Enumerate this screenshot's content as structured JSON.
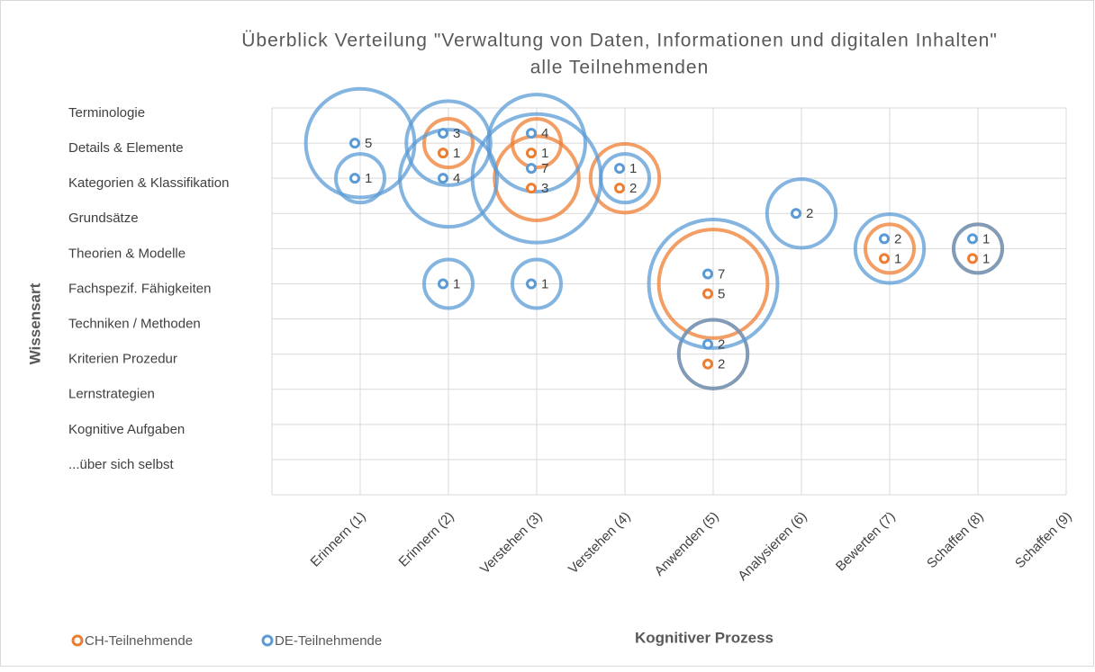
{
  "chart_data": {
    "type": "bubble",
    "title": "Überblick Verteilung \"Verwaltung von Daten, Informationen und digitalen Inhalten\"",
    "subtitle": "alle Teilnehmenden",
    "x_label": "Kognitiver Prozess",
    "y_label": "Wissensart",
    "xlim": [
      0,
      9
    ],
    "xticks": [
      {
        "value": 1,
        "label": "Erinnern (1)"
      },
      {
        "value": 2,
        "label": "Erinnern (2)"
      },
      {
        "value": 3,
        "label": "Verstehen (3)"
      },
      {
        "value": 4,
        "label": "Verstehen (4)"
      },
      {
        "value": 5,
        "label": "Anwenden (5)"
      },
      {
        "value": 6,
        "label": "Analysieren (6)"
      },
      {
        "value": 7,
        "label": "Bewerten (7)"
      },
      {
        "value": 8,
        "label": "Schaffen (8)"
      },
      {
        "value": 9,
        "label": "Schaffen (9)"
      }
    ],
    "ylim": [
      0,
      11
    ],
    "yticks": [
      {
        "value": 11,
        "label": "Terminologie"
      },
      {
        "value": 10,
        "label": "Details & Elemente"
      },
      {
        "value": 9,
        "label": "Kategorien & Klassifikation"
      },
      {
        "value": 8,
        "label": "Grundsätze"
      },
      {
        "value": 7,
        "label": "Theorien & Modelle"
      },
      {
        "value": 6,
        "label": "Fachspezif. Fähigkeiten"
      },
      {
        "value": 5,
        "label": "Techniken / Methoden"
      },
      {
        "value": 4,
        "label": "Kriterien Prozedur"
      },
      {
        "value": 3,
        "label": "Lernstrategien"
      },
      {
        "value": 2,
        "label": "Kognitive Aufgaben"
      },
      {
        "value": 1,
        "label": "...über sich selbst"
      }
    ],
    "grid": true,
    "legend": "bottom-left",
    "series": [
      {
        "name": "CH-Teilnehmende",
        "color": "#ed7d31",
        "x": [
          2,
          3,
          3,
          4,
          5,
          5,
          7,
          8
        ],
        "values": [
          10,
          10,
          9,
          9,
          6,
          4,
          7,
          7
        ],
        "sizes": [
          1,
          1,
          3,
          2,
          5,
          2,
          1,
          1
        ]
      },
      {
        "name": "DE-Teilnehmende",
        "color": "#5b9bd5",
        "x": [
          1,
          1,
          2,
          2,
          2,
          3,
          3,
          3,
          4,
          5,
          5,
          6,
          7,
          8
        ],
        "values": [
          10,
          9,
          10,
          9,
          6,
          10,
          9,
          6,
          9,
          6,
          4,
          8,
          7,
          7
        ],
        "sizes": [
          5,
          1,
          3,
          4,
          1,
          4,
          7,
          1,
          1,
          7,
          2,
          2,
          2,
          1
        ]
      }
    ]
  }
}
